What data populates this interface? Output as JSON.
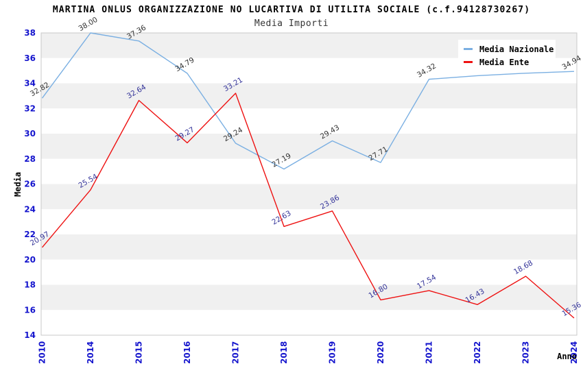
{
  "header": {
    "title": "MARTINA ONLUS ORGANIZZAZIONE NO LUCARTIVA DI UTILITA SOCIALE (c.f.94128730267)",
    "subtitle": "Media Importi"
  },
  "legend": {
    "items": [
      {
        "label": "Media Nazionale",
        "color": "#7aafe2"
      },
      {
        "label": "Media Ente",
        "color": "#ee1111"
      }
    ]
  },
  "colors": {
    "axis_text": "#1515cd",
    "plot_border": "#c9c9c9",
    "band_gray": "#f0f0f0",
    "band_white": "#ffffff",
    "title_text": "#000000",
    "subtitle_text": "#333333"
  },
  "chart_data": {
    "type": "line",
    "title": "MARTINA ONLUS ORGANIZZAZIONE NO LUCARTIVA DI UTILITA SOCIALE (c.f.94128730267)",
    "subtitle": "Media Importi",
    "xlabel": "Anno",
    "ylabel": "Media",
    "x": [
      "2010",
      "2014",
      "2015",
      "2016",
      "2017",
      "2018",
      "2019",
      "2020",
      "2021",
      "2022",
      "2023",
      "2024"
    ],
    "ylim": [
      14,
      38
    ],
    "ytick_step": 2,
    "grid": "alternating-bands",
    "legend_position": "top-right",
    "series": [
      {
        "name": "Media Nazionale",
        "color": "#7aafe2",
        "label_color": "#333333",
        "values": [
          32.82,
          38.0,
          37.36,
          34.79,
          29.24,
          27.19,
          29.43,
          27.71,
          34.32,
          34.6,
          34.8,
          34.94
        ],
        "point_labels": [
          "32.82",
          "38.00",
          "37.36",
          "34.79",
          "29.24",
          "27.19",
          "29.43",
          "27.71",
          "34.32",
          null,
          null,
          "34.94"
        ]
      },
      {
        "name": "Media Ente",
        "color": "#ee1111",
        "label_color": "#333399",
        "values": [
          20.97,
          25.54,
          32.64,
          29.27,
          33.21,
          22.63,
          23.86,
          16.8,
          17.54,
          16.43,
          18.68,
          15.36
        ],
        "point_labels": [
          "20.97",
          "25.54",
          "32.64",
          "29.27",
          "33.21",
          "22.63",
          "23.86",
          "16.80",
          "17.54",
          "16.43",
          "18.68",
          "15.36"
        ]
      }
    ]
  }
}
